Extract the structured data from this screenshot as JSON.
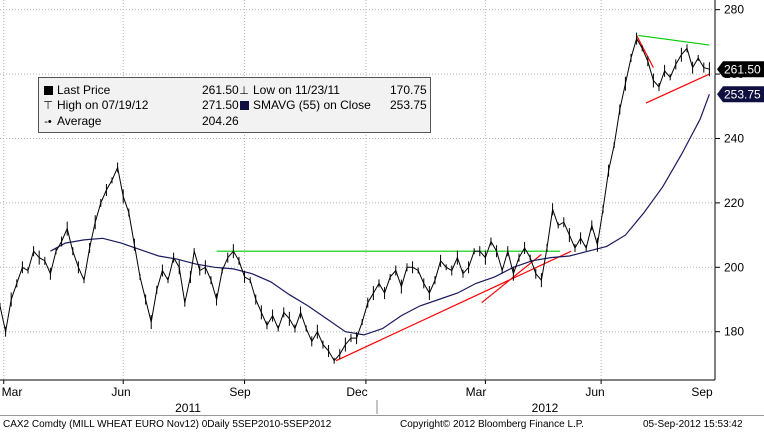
{
  "legend": {
    "last_price_label": "Last Price",
    "last_price_value": "261.50",
    "high_label": "High on 07/19/12",
    "high_value": "271.50",
    "average_label": "Average",
    "average_value": "204.26",
    "low_label": "Low on 11/23/11",
    "low_value": "170.75",
    "smavg_label": "SMAVG (55) on Close",
    "smavg_value": "253.75"
  },
  "footer": {
    "left": "CAX2 Comdty  (MILL WHEAT EURO   Nov12)  0Daily 5SEP2010-5SEP2012",
    "center": "Copyright© 2012 Bloomberg Finance L.P.",
    "right": "05-Sep-2012 15:53:42"
  },
  "colors": {
    "price": "#000000",
    "smavg": "#1a1a5e",
    "trend_green": "#00cc00",
    "trend_red": "#ff0000",
    "last_tag": "#000000",
    "smavg_tag": "#101040"
  },
  "chart_data": {
    "type": "line",
    "y_ticks": [
      "180",
      "200",
      "220",
      "240",
      "260",
      "280"
    ],
    "ylim": [
      165,
      283
    ],
    "x_month_labels": [
      "Mar",
      "Jun",
      "Sep",
      "Dec",
      "Mar",
      "Jun",
      "Sep"
    ],
    "x_year_labels": [
      "2011",
      "2012"
    ],
    "last_price_tag": "261.50",
    "smavg_tag": "253.75",
    "series": [
      {
        "name": "Last Price",
        "x": [
          0,
          3,
          6,
          9,
          12,
          15,
          18,
          21,
          24,
          27,
          30,
          33,
          36,
          39,
          42,
          45,
          48,
          51,
          54,
          57,
          60,
          63,
          66,
          69,
          72,
          75,
          78,
          81,
          84,
          87,
          90,
          93,
          96,
          99,
          102,
          104,
          107,
          110,
          113,
          116,
          119,
          122,
          125,
          128,
          131,
          134,
          137,
          140,
          143,
          146,
          149,
          152,
          155,
          158,
          161,
          164,
          167,
          170,
          173,
          176,
          179,
          182,
          185,
          188,
          191,
          194,
          197,
          200,
          203,
          206,
          209,
          212,
          215,
          218,
          221,
          224,
          227,
          230,
          233,
          236,
          239,
          242,
          245,
          248,
          251,
          254,
          257,
          260,
          263,
          266,
          269,
          272,
          275,
          278,
          281,
          284,
          287,
          290,
          293,
          296,
          299,
          302,
          305,
          308,
          311,
          314,
          317,
          320,
          323,
          326,
          329,
          332,
          335,
          338,
          341,
          344,
          347,
          350,
          353,
          356,
          359,
          362,
          365,
          368,
          371,
          374,
          377,
          380
        ],
        "values": [
          188,
          180,
          190,
          195,
          200,
          199,
          205,
          203,
          202,
          198,
          205,
          208,
          212,
          205,
          200,
          196,
          206,
          214,
          220,
          224,
          227,
          231,
          222,
          217,
          207,
          197,
          190,
          183,
          193,
          199,
          196,
          203,
          200,
          189,
          197,
          205,
          199,
          200,
          196,
          190,
          199,
          203,
          205,
          202,
          197,
          196,
          190,
          186,
          182,
          185,
          181,
          186,
          184,
          181,
          186,
          181,
          177,
          180,
          176,
          174,
          171,
          173,
          176,
          178,
          178,
          183,
          189,
          192,
          195,
          192,
          197,
          199,
          194,
          200,
          200,
          199,
          195,
          192,
          196,
          202,
          200,
          199,
          203,
          198,
          200,
          205,
          205,
          203,
          208,
          205,
          199,
          205,
          198,
          203,
          206,
          203,
          198,
          196,
          206,
          218,
          213,
          214,
          210,
          206,
          209,
          206,
          213,
          207,
          218,
          230,
          238,
          249,
          257,
          265,
          271,
          268,
          264,
          258,
          256,
          261,
          259,
          263,
          266,
          268,
          262,
          265,
          262,
          261.5
        ]
      },
      {
        "name": "SMAVG (55) on Close",
        "x": [
          27,
          35,
          45,
          55,
          65,
          75,
          85,
          95,
          105,
          115,
          125,
          135,
          145,
          155,
          165,
          175,
          185,
          195,
          205,
          215,
          225,
          235,
          245,
          255,
          265,
          275,
          285,
          295,
          305,
          315,
          325,
          335,
          345,
          355,
          365,
          375,
          380
        ],
        "values": [
          205,
          207.5,
          208.5,
          209,
          207.5,
          205.5,
          203.5,
          202.5,
          201,
          200,
          199.5,
          198,
          195.5,
          191.5,
          188,
          184,
          180,
          179,
          181,
          185,
          188,
          190,
          192,
          195,
          197,
          200,
          202,
          203,
          203.5,
          205,
          206.5,
          210,
          217,
          225,
          235,
          246,
          253.75
        ]
      }
    ],
    "trendlines": [
      {
        "color": "green",
        "x": [
          116,
          300
        ],
        "values": [
          205,
          205
        ]
      },
      {
        "color": "red",
        "x": [
          180,
          306
        ],
        "values": [
          171,
          205
        ]
      },
      {
        "color": "red",
        "x": [
          258,
          290
        ],
        "values": [
          189,
          204
        ]
      },
      {
        "color": "green",
        "x": [
          342,
          380
        ],
        "values": [
          272,
          269
        ]
      },
      {
        "color": "red",
        "x": [
          341,
          350
        ],
        "values": [
          272,
          262
        ]
      },
      {
        "color": "red",
        "x": [
          346,
          380
        ],
        "values": [
          251,
          260
        ]
      }
    ]
  }
}
